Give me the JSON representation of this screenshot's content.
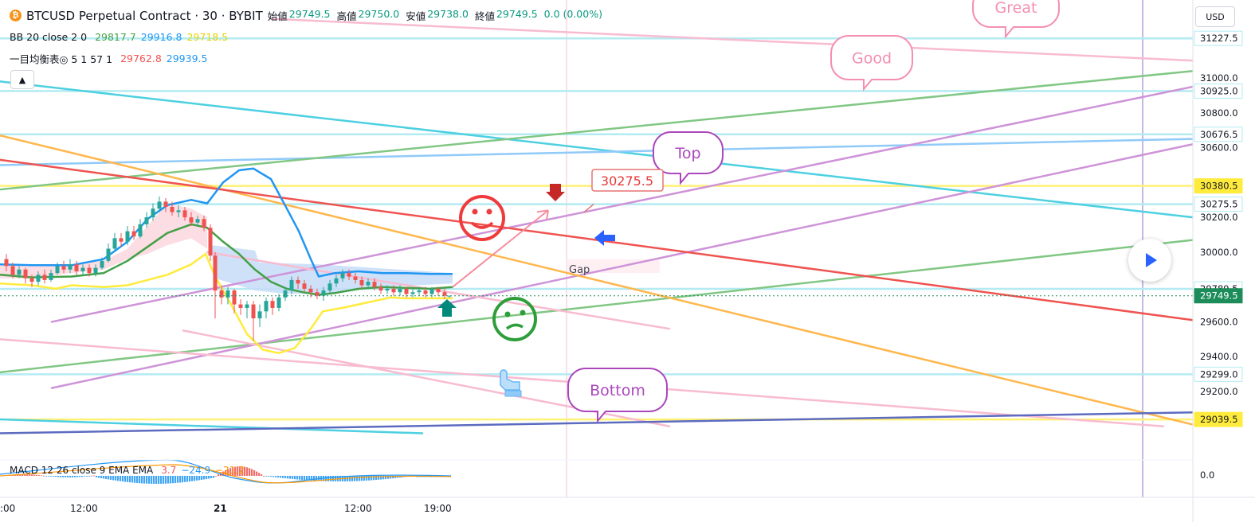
{
  "header": {
    "symbol_title": "BTCUSD Perpetual Contract · 30 · BYBIT",
    "open_label": "始値",
    "open": "29749.5",
    "high_label": "高値",
    "high": "29750.0",
    "low_label": "安値",
    "low": "29738.0",
    "close_label": "終値",
    "close": "29749.5",
    "change": "0.0 (0.00%)"
  },
  "indicators": {
    "bb": {
      "label": "BB 20 close 2 0",
      "basis": "29817.7",
      "upper": "29916.8",
      "lower": "29718.5"
    },
    "ichimoku": {
      "label": "一目均衡表◎ 5 1 57 1",
      "v1": "29762.8",
      "v2": "29939.5"
    },
    "macd": {
      "label": "MACD 12 26 close 9 EMA EMA",
      "v1": "3.7",
      "v2": "−24.9",
      "v3": "−21.2"
    }
  },
  "controls": {
    "currency": "USD",
    "collapse_icon": "chevron-up-icon",
    "play_icon": "play-icon"
  },
  "chart_data": {
    "type": "line",
    "title": "BTCUSD Perpetual Contract · 30 · BYBIT",
    "price_axis_ticks": [
      "31000.0",
      "30800.0",
      "30600.0",
      "30200.0",
      "30000.0",
      "29600.0",
      "29400.0",
      "29200.0"
    ],
    "price_labels": [
      {
        "value": "31227.5",
        "highlight": false
      },
      {
        "value": "30925.0",
        "highlight": false
      },
      {
        "value": "30676.5",
        "highlight": false
      },
      {
        "value": "30380.5",
        "highlight": true,
        "color": "#ffeb3b"
      },
      {
        "value": "30275.5",
        "highlight": false
      },
      {
        "value": "29789.5",
        "highlight": false
      },
      {
        "value": "29749.5",
        "highlight": true,
        "color": "#1c8c5a"
      },
      {
        "value": "29299.0",
        "highlight": false
      },
      {
        "value": "29039.5",
        "highlight": true,
        "color": "#ffeb3b"
      }
    ],
    "macd_axis_tick": "0.0",
    "time_labels": [
      ":00",
      "12:00",
      "21",
      "12:00",
      "19:00"
    ],
    "ylim": [
      28950,
      31320
    ],
    "annotations": {
      "callouts": [
        "Great",
        "Good",
        "Top",
        "Bottom"
      ],
      "price_note": "30275.5",
      "gap_label": "Gap"
    },
    "series": [
      {
        "role": "bb-upper",
        "color": "#2196f3",
        "points": [
          [
            0,
            29930
          ],
          [
            40,
            29925
          ],
          [
            90,
            29925
          ],
          [
            130,
            29960
          ],
          [
            160,
            30060
          ],
          [
            185,
            30190
          ],
          [
            210,
            30270
          ],
          [
            240,
            30300
          ],
          [
            260,
            30280
          ],
          [
            280,
            30400
          ],
          [
            300,
            30470
          ],
          [
            318,
            30480
          ],
          [
            340,
            30420
          ],
          [
            360,
            30250
          ],
          [
            375,
            30120
          ],
          [
            390,
            29960
          ],
          [
            400,
            29860
          ],
          [
            420,
            29880
          ],
          [
            450,
            29890
          ],
          [
            480,
            29880
          ],
          [
            510,
            29880
          ],
          [
            540,
            29875
          ],
          [
            568,
            29875
          ]
        ]
      },
      {
        "role": "bb-basis",
        "color": "#43a047",
        "points": [
          [
            0,
            29870
          ],
          [
            40,
            29855
          ],
          [
            90,
            29860
          ],
          [
            130,
            29880
          ],
          [
            160,
            29950
          ],
          [
            185,
            30030
          ],
          [
            210,
            30110
          ],
          [
            240,
            30160
          ],
          [
            260,
            30140
          ],
          [
            280,
            30060
          ],
          [
            300,
            29990
          ],
          [
            320,
            29900
          ],
          [
            340,
            29830
          ],
          [
            360,
            29790
          ],
          [
            380,
            29770
          ],
          [
            400,
            29755
          ],
          [
            420,
            29765
          ],
          [
            450,
            29790
          ],
          [
            480,
            29800
          ],
          [
            510,
            29795
          ],
          [
            540,
            29790
          ],
          [
            568,
            29800
          ]
        ]
      },
      {
        "role": "bb-lower",
        "color": "#ffeb3b",
        "points": [
          [
            0,
            29820
          ],
          [
            40,
            29810
          ],
          [
            70,
            29790
          ],
          [
            90,
            29810
          ],
          [
            130,
            29800
          ],
          [
            160,
            29810
          ],
          [
            185,
            29840
          ],
          [
            210,
            29870
          ],
          [
            240,
            29930
          ],
          [
            258,
            29990
          ],
          [
            270,
            29860
          ],
          [
            290,
            29700
          ],
          [
            310,
            29530
          ],
          [
            330,
            29440
          ],
          [
            350,
            29420
          ],
          [
            370,
            29450
          ],
          [
            390,
            29560
          ],
          [
            405,
            29660
          ],
          [
            430,
            29680
          ],
          [
            460,
            29710
          ],
          [
            490,
            29740
          ],
          [
            510,
            29735
          ],
          [
            540,
            29735
          ],
          [
            568,
            29735
          ]
        ]
      }
    ],
    "candles": [
      {
        "x": 8,
        "o": 29960,
        "c": 29920,
        "h": 29990,
        "l": 29890
      },
      {
        "x": 16,
        "o": 29920,
        "c": 29870,
        "h": 29940,
        "l": 29850
      },
      {
        "x": 24,
        "o": 29870,
        "c": 29900,
        "h": 29920,
        "l": 29850
      },
      {
        "x": 32,
        "o": 29900,
        "c": 29850,
        "h": 29910,
        "l": 29820
      },
      {
        "x": 40,
        "o": 29850,
        "c": 29830,
        "h": 29870,
        "l": 29800
      },
      {
        "x": 48,
        "o": 29830,
        "c": 29870,
        "h": 29890,
        "l": 29810
      },
      {
        "x": 56,
        "o": 29870,
        "c": 29840,
        "h": 29900,
        "l": 29820
      },
      {
        "x": 64,
        "o": 29840,
        "c": 29880,
        "h": 29900,
        "l": 29830
      },
      {
        "x": 72,
        "o": 29880,
        "c": 29920,
        "h": 29940,
        "l": 29870
      },
      {
        "x": 80,
        "o": 29920,
        "c": 29900,
        "h": 29950,
        "l": 29880
      },
      {
        "x": 88,
        "o": 29900,
        "c": 29930,
        "h": 29960,
        "l": 29880
      },
      {
        "x": 96,
        "o": 29930,
        "c": 29890,
        "h": 29950,
        "l": 29870
      },
      {
        "x": 104,
        "o": 29890,
        "c": 29910,
        "h": 29930,
        "l": 29870
      },
      {
        "x": 112,
        "o": 29910,
        "c": 29880,
        "h": 29930,
        "l": 29860
      },
      {
        "x": 120,
        "o": 29880,
        "c": 29910,
        "h": 29930,
        "l": 29860
      },
      {
        "x": 128,
        "o": 29910,
        "c": 29950,
        "h": 29970,
        "l": 29900
      },
      {
        "x": 136,
        "o": 29950,
        "c": 30020,
        "h": 30050,
        "l": 29940
      },
      {
        "x": 144,
        "o": 30020,
        "c": 30080,
        "h": 30110,
        "l": 30000
      },
      {
        "x": 152,
        "o": 30080,
        "c": 30060,
        "h": 30110,
        "l": 30030
      },
      {
        "x": 160,
        "o": 30060,
        "c": 30120,
        "h": 30150,
        "l": 30040
      },
      {
        "x": 168,
        "o": 30120,
        "c": 30090,
        "h": 30150,
        "l": 30070
      },
      {
        "x": 176,
        "o": 30090,
        "c": 30160,
        "h": 30190,
        "l": 30080
      },
      {
        "x": 184,
        "o": 30160,
        "c": 30200,
        "h": 30230,
        "l": 30140
      },
      {
        "x": 192,
        "o": 30200,
        "c": 30250,
        "h": 30280,
        "l": 30180
      },
      {
        "x": 200,
        "o": 30250,
        "c": 30290,
        "h": 30320,
        "l": 30230
      },
      {
        "x": 208,
        "o": 30290,
        "c": 30260,
        "h": 30310,
        "l": 30230
      },
      {
        "x": 216,
        "o": 30260,
        "c": 30230,
        "h": 30290,
        "l": 30210
      },
      {
        "x": 224,
        "o": 30230,
        "c": 30240,
        "h": 30270,
        "l": 30200
      },
      {
        "x": 232,
        "o": 30240,
        "c": 30200,
        "h": 30260,
        "l": 30180
      },
      {
        "x": 240,
        "o": 30200,
        "c": 30170,
        "h": 30230,
        "l": 30150
      },
      {
        "x": 248,
        "o": 30170,
        "c": 30190,
        "h": 30210,
        "l": 30150
      },
      {
        "x": 256,
        "o": 30190,
        "c": 30140,
        "h": 30210,
        "l": 30120
      },
      {
        "x": 264,
        "o": 30140,
        "c": 29980,
        "h": 30160,
        "l": 29950
      },
      {
        "x": 270,
        "o": 29980,
        "c": 29780,
        "h": 30000,
        "l": 29620
      },
      {
        "x": 278,
        "o": 29780,
        "c": 29740,
        "h": 29810,
        "l": 29700
      },
      {
        "x": 286,
        "o": 29740,
        "c": 29780,
        "h": 29800,
        "l": 29700
      },
      {
        "x": 294,
        "o": 29780,
        "c": 29700,
        "h": 29790,
        "l": 29650
      },
      {
        "x": 302,
        "o": 29700,
        "c": 29680,
        "h": 29730,
        "l": 29640
      },
      {
        "x": 310,
        "o": 29680,
        "c": 29700,
        "h": 29720,
        "l": 29620
      },
      {
        "x": 318,
        "o": 29700,
        "c": 29620,
        "h": 29720,
        "l": 29490
      },
      {
        "x": 326,
        "o": 29620,
        "c": 29660,
        "h": 29700,
        "l": 29570
      },
      {
        "x": 334,
        "o": 29660,
        "c": 29720,
        "h": 29740,
        "l": 29620
      },
      {
        "x": 342,
        "o": 29720,
        "c": 29680,
        "h": 29740,
        "l": 29640
      },
      {
        "x": 350,
        "o": 29680,
        "c": 29740,
        "h": 29760,
        "l": 29660
      },
      {
        "x": 358,
        "o": 29740,
        "c": 29780,
        "h": 29800,
        "l": 29720
      },
      {
        "x": 366,
        "o": 29780,
        "c": 29840,
        "h": 29860,
        "l": 29760
      },
      {
        "x": 374,
        "o": 29840,
        "c": 29820,
        "h": 29860,
        "l": 29790
      },
      {
        "x": 382,
        "o": 29820,
        "c": 29790,
        "h": 29840,
        "l": 29770
      },
      {
        "x": 390,
        "o": 29790,
        "c": 29770,
        "h": 29810,
        "l": 29740
      },
      {
        "x": 398,
        "o": 29770,
        "c": 29750,
        "h": 29790,
        "l": 29730
      },
      {
        "x": 406,
        "o": 29750,
        "c": 29780,
        "h": 29800,
        "l": 29720
      },
      {
        "x": 414,
        "o": 29780,
        "c": 29820,
        "h": 29840,
        "l": 29760
      },
      {
        "x": 422,
        "o": 29820,
        "c": 29850,
        "h": 29870,
        "l": 29800
      },
      {
        "x": 430,
        "o": 29850,
        "c": 29880,
        "h": 29900,
        "l": 29830
      },
      {
        "x": 438,
        "o": 29880,
        "c": 29860,
        "h": 29900,
        "l": 29840
      },
      {
        "x": 446,
        "o": 29860,
        "c": 29840,
        "h": 29880,
        "l": 29820
      },
      {
        "x": 454,
        "o": 29840,
        "c": 29810,
        "h": 29860,
        "l": 29790
      },
      {
        "x": 462,
        "o": 29810,
        "c": 29830,
        "h": 29850,
        "l": 29790
      },
      {
        "x": 470,
        "o": 29830,
        "c": 29800,
        "h": 29850,
        "l": 29780
      },
      {
        "x": 478,
        "o": 29800,
        "c": 29780,
        "h": 29820,
        "l": 29760
      },
      {
        "x": 486,
        "o": 29780,
        "c": 29790,
        "h": 29810,
        "l": 29760
      },
      {
        "x": 494,
        "o": 29790,
        "c": 29770,
        "h": 29810,
        "l": 29750
      },
      {
        "x": 502,
        "o": 29770,
        "c": 29790,
        "h": 29810,
        "l": 29750
      },
      {
        "x": 510,
        "o": 29790,
        "c": 29760,
        "h": 29800,
        "l": 29740
      },
      {
        "x": 518,
        "o": 29760,
        "c": 29770,
        "h": 29790,
        "l": 29740
      },
      {
        "x": 526,
        "o": 29770,
        "c": 29780,
        "h": 29800,
        "l": 29750
      },
      {
        "x": 534,
        "o": 29780,
        "c": 29760,
        "h": 29800,
        "l": 29740
      },
      {
        "x": 542,
        "o": 29760,
        "c": 29790,
        "h": 29800,
        "l": 29740
      },
      {
        "x": 550,
        "o": 29790,
        "c": 29770,
        "h": 29800,
        "l": 29750
      },
      {
        "x": 558,
        "o": 29770,
        "c": 29750,
        "h": 29790,
        "l": 29730
      },
      {
        "x": 564,
        "o": 29750,
        "c": 29750,
        "h": 29750,
        "l": 29738
      }
    ],
    "trend_lines": [
      {
        "color": "#4dd0e1",
        "from": [
          0,
          30980
        ],
        "to": [
          1497,
          30200
        ]
      },
      {
        "color": "#90caf9",
        "from": [
          0,
          30500
        ],
        "to": [
          1497,
          30650
        ]
      },
      {
        "color": "#81c784",
        "from": [
          0,
          30360
        ],
        "to": [
          1497,
          31040
        ]
      },
      {
        "color": "#81c784",
        "from": [
          0,
          29310
        ],
        "to": [
          1497,
          30070
        ]
      },
      {
        "color": "#ce93d8",
        "from": [
          65,
          29600
        ],
        "to": [
          1497,
          30950
        ]
      },
      {
        "color": "#ce93d8",
        "from": [
          65,
          29220
        ],
        "to": [
          1497,
          30620
        ]
      },
      {
        "color": "#ffb74d",
        "from": [
          0,
          30670
        ],
        "to": [
          1497,
          29010
        ]
      },
      {
        "color": "#ef5350",
        "from": [
          0,
          30530
        ],
        "to": [
          1497,
          29610
        ]
      },
      {
        "color": "#f8bbd0",
        "from": [
          340,
          31340
        ],
        "to": [
          1497,
          31100
        ]
      },
      {
        "color": "#f8bbd0",
        "from": [
          0,
          29500
        ],
        "to": [
          1460,
          29000
        ]
      },
      {
        "color": "#f8bbd0",
        "from": [
          230,
          29550
        ],
        "to": [
          840,
          29000
        ]
      },
      {
        "color": "#f8bbd0",
        "from": [
          260,
          30000
        ],
        "to": [
          840,
          29560
        ]
      },
      {
        "color": "#4dd0e1",
        "from": [
          0,
          29040
        ],
        "to": [
          530,
          28960
        ]
      },
      {
        "color": "#5c6bc0",
        "from": [
          0,
          28960
        ],
        "to": [
          1497,
          29080
        ]
      }
    ],
    "horizontal_lines": [
      {
        "value": 31227.5,
        "color": "#b2ebf2"
      },
      {
        "value": 30925.0,
        "color": "#b2ebf2"
      },
      {
        "value": 30676.5,
        "color": "#b2ebf2"
      },
      {
        "value": 30380.5,
        "color": "#fff176"
      },
      {
        "value": 30275.5,
        "color": "#b2ebf2"
      },
      {
        "value": 29789.5,
        "color": "#b2ebf2"
      },
      {
        "value": 29299.0,
        "color": "#b2ebf2"
      },
      {
        "value": 29039.5,
        "color": "#fff176"
      }
    ],
    "macd_histogram_colors": [
      "#ef5350",
      "#2196f3"
    ],
    "macd_lines": {
      "macd": "#2196f3",
      "signal": "#ff9800"
    }
  }
}
